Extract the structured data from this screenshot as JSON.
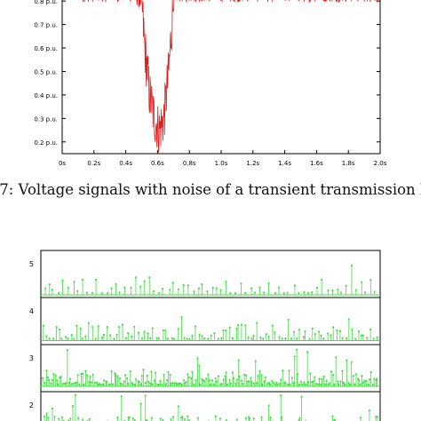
{
  "caption": ".7: Voltage signals with noise of a transient transmission lin",
  "colors": {
    "top_signal": "#e41a1c",
    "bottom_signal": "#3ee03e",
    "axis": "#000000"
  },
  "chart_data": [
    {
      "type": "line",
      "title": "",
      "xlabel": "",
      "ylabel": "",
      "x_ticks": [
        "0s",
        "0.2s",
        "0.4s",
        "0.6s",
        "0.8s",
        "1.0s",
        "1.2s",
        "1.4s",
        "1.6s",
        "1.8s",
        "2.0s"
      ],
      "y_ticks": [
        "0.2 p.u.",
        "0.3 p.u.",
        "0.4 p.u.",
        "0.5 p.u.",
        "0.6 p.u.",
        "0.7 p.u.",
        "0.8 p.u."
      ],
      "xlim": [
        0,
        2.0
      ],
      "ylim": [
        0.15,
        0.88
      ],
      "series": [
        {
          "x": [
            0.0,
            0.45,
            0.5,
            0.52,
            0.55,
            0.58,
            0.61,
            0.64,
            0.67,
            0.7,
            0.73,
            2.0
          ],
          "y": [
            0.84,
            0.84,
            0.8,
            0.6,
            0.4,
            0.3,
            0.25,
            0.3,
            0.5,
            0.8,
            0.84,
            0.84
          ]
        }
      ],
      "noise": "high-frequency noise on every sample",
      "grid": false,
      "legend": "none"
    },
    {
      "type": "bar",
      "title": "",
      "xlabel": "",
      "ylabel": "",
      "y_ticks": [
        "5",
        "4",
        "3",
        "2"
      ],
      "panels": 4,
      "series": [
        {
          "name": "",
          "level": 5,
          "style": "stem",
          "peak": 0.9
        },
        {
          "name": "",
          "level": 4,
          "style": "stem",
          "peak": 0.9
        },
        {
          "name": "",
          "level": 3,
          "style": "stem",
          "peak": 0.9
        },
        {
          "name": "",
          "level": 2,
          "style": "stem",
          "peak": 0.9
        }
      ],
      "grid": false,
      "legend": "none"
    }
  ]
}
